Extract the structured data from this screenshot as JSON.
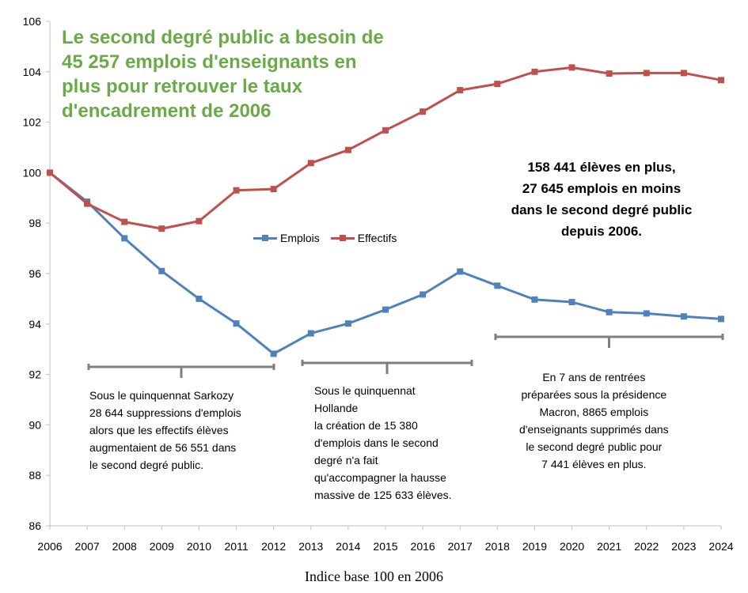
{
  "chart_data": {
    "type": "line",
    "title_lines": [
      "Le second degré public a besoin de",
      "45 257 emplois d'enseignants en",
      "plus pour retrouver le taux",
      "d'encadrement de 2006"
    ],
    "x": [
      "2006",
      "2007",
      "2008",
      "2009",
      "2010",
      "2011",
      "2012",
      "2013",
      "2014",
      "2015",
      "2016",
      "2017",
      "2018",
      "2019",
      "2020",
      "2021",
      "2022",
      "2023",
      "2024"
    ],
    "series": [
      {
        "name": "Emplois",
        "color": "#4f81bd",
        "values": [
          100,
          98.85,
          97.4,
          96.1,
          95.0,
          94.02,
          92.82,
          93.63,
          94.02,
          94.57,
          95.17,
          96.08,
          95.52,
          94.97,
          94.87,
          94.47,
          94.42,
          94.3,
          94.2
        ]
      },
      {
        "name": "Effectifs",
        "color": "#c0504d",
        "values": [
          100,
          98.77,
          98.05,
          97.78,
          98.08,
          99.3,
          99.35,
          100.38,
          100.9,
          101.68,
          102.42,
          103.27,
          103.52,
          104.0,
          104.17,
          103.93,
          103.95,
          103.95,
          103.67
        ]
      }
    ],
    "ylim": [
      86,
      106
    ],
    "yticks": [
      86,
      88,
      90,
      92,
      94,
      96,
      98,
      100,
      102,
      104,
      106
    ],
    "xlabel": "Indice base 100 en 2006",
    "ylabel": "",
    "legend_position": "middle",
    "grid": false,
    "annotations": {
      "callout": [
        "158 441 élèves en plus,",
        "27 645 emplois en moins",
        "dans le second degré public",
        "depuis 2006."
      ],
      "notes": [
        {
          "period": [
            "2007",
            "2012"
          ],
          "lines": [
            "Sous le quinquennat Sarkozy",
            "28 644 suppressions d'emplois",
            "alors que les effectifs élèves",
            "augmentaient de 56 551 dans",
            "le second degré public."
          ]
        },
        {
          "period": [
            "2013",
            "2017"
          ],
          "lines": [
            "Sous le quinquennat",
            "Hollande",
            "la création de 15 380",
            "d'emplois dans le second",
            "degré n'a fait",
            "qu'accompagner la hausse",
            "massive de 125 633 élèves."
          ]
        },
        {
          "period": [
            "2018",
            "2024"
          ],
          "lines": [
            "En 7 ans de rentrées",
            "préparées sous la présidence",
            "Macron, 8865 emplois",
            "d'enseignants supprimés dans",
            "le second degré public pour",
            "7  441 élèves en plus."
          ]
        }
      ]
    }
  }
}
